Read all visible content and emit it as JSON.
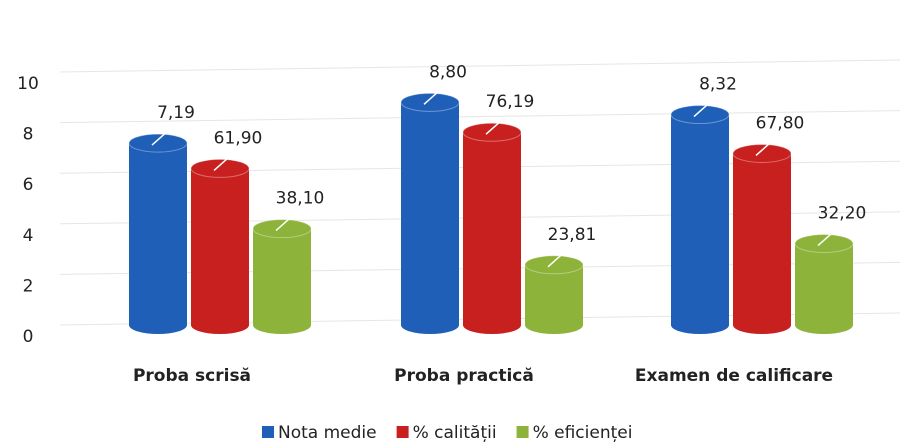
{
  "chart_data": {
    "type": "bar",
    "categories": [
      "Proba scrisă",
      "Proba practică",
      "Examen de calificare"
    ],
    "series": [
      {
        "name": "Nota medie",
        "color": "#1f5fb8",
        "values": [
          7.19,
          8.8,
          8.32
        ],
        "value_labels": [
          "7,19",
          "8,80",
          "8,32"
        ]
      },
      {
        "name": "% calității",
        "color": "#c8201f",
        "values": [
          61.9,
          76.19,
          67.8
        ],
        "value_labels": [
          "61,90",
          "76,19",
          "67,80"
        ],
        "axis": "y2"
      },
      {
        "name": "% eficienței",
        "color": "#8db33a",
        "values": [
          38.1,
          23.81,
          32.2
        ],
        "value_labels": [
          "38,10",
          "23,81",
          "32,20"
        ],
        "axis": "y2"
      }
    ],
    "ylim": [
      0,
      10
    ],
    "yticks": [
      0,
      2,
      4,
      6,
      8,
      10
    ],
    "y2lim": [
      0,
      100
    ],
    "grid": true,
    "legend": "bottom"
  }
}
